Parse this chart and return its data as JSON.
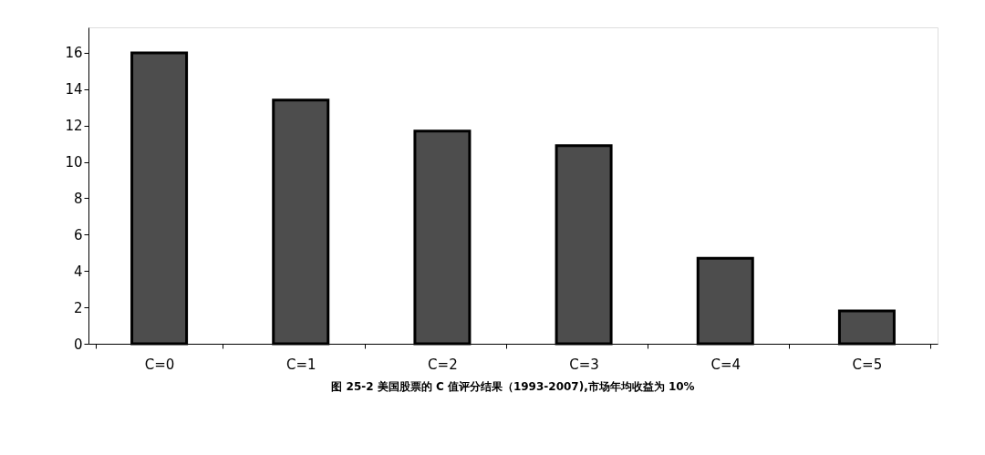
{
  "chart_data": {
    "type": "bar",
    "title": "图 25-2 美国股票的 C 值评分结果（1993-2007),市场年均收益为 10%",
    "categories": [
      "C=0",
      "C=1",
      "C=2",
      "C=3",
      "C=4",
      "C=5"
    ],
    "values": [
      16,
      13.4,
      11.7,
      10.9,
      4.7,
      1.8
    ],
    "color": "#4d4d4d",
    "ylim": [
      0,
      17.4
    ],
    "yticks": [
      0,
      2,
      4,
      6,
      8,
      10,
      12,
      14,
      16
    ],
    "grid": false
  }
}
